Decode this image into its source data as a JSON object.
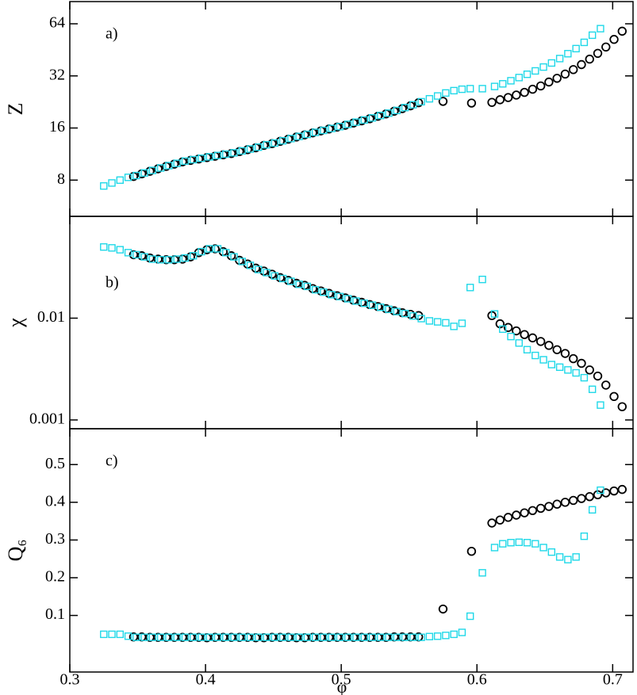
{
  "chart_data": [
    {
      "type": "scatter",
      "annotation": "a)",
      "ylabel": "Z",
      "ylog": true,
      "xlim": [
        0.3,
        0.715
      ],
      "xticks": [
        0.3,
        0.4,
        0.5,
        0.6,
        0.7
      ],
      "ylim": [
        4.94,
        86
      ],
      "yticks": [
        8,
        16,
        32,
        64
      ],
      "series": [
        {
          "color": "#000000",
          "marker": "circle",
          "x": [
            0.347,
            0.353,
            0.359,
            0.365,
            0.371,
            0.377,
            0.383,
            0.389,
            0.395,
            0.401,
            0.407,
            0.413,
            0.419,
            0.425,
            0.431,
            0.437,
            0.443,
            0.449,
            0.455,
            0.461,
            0.467,
            0.473,
            0.479,
            0.485,
            0.491,
            0.497,
            0.503,
            0.509,
            0.515,
            0.521,
            0.527,
            0.533,
            0.539,
            0.545,
            0.551,
            0.557,
            0.575,
            0.596,
            0.611,
            0.617,
            0.623,
            0.629,
            0.635,
            0.641,
            0.647,
            0.653,
            0.659,
            0.665,
            0.671,
            0.677,
            0.683,
            0.689,
            0.695,
            0.701,
            0.707
          ],
          "values": [
            8.4,
            8.7,
            9.0,
            9.3,
            9.6,
            9.9,
            10.2,
            10.4,
            10.6,
            10.8,
            11.0,
            11.2,
            11.4,
            11.7,
            12.0,
            12.3,
            12.7,
            13.0,
            13.4,
            13.8,
            14.2,
            14.6,
            15.0,
            15.4,
            15.8,
            16.2,
            16.6,
            17.1,
            17.6,
            18.1,
            18.7,
            19.3,
            20.0,
            20.7,
            21.5,
            22.4,
            22.8,
            22.3,
            22.5,
            23.3,
            24.0,
            24.8,
            25.7,
            26.8,
            28.0,
            29.5,
            31.0,
            32.8,
            34.8,
            37.2,
            40.0,
            43.2,
            47.0,
            52.0,
            58.0
          ]
        },
        {
          "color": "#1fd8e8",
          "marker": "square",
          "x": [
            0.325,
            0.331,
            0.337,
            0.343,
            0.349,
            0.355,
            0.361,
            0.367,
            0.373,
            0.379,
            0.385,
            0.391,
            0.397,
            0.403,
            0.409,
            0.415,
            0.421,
            0.427,
            0.433,
            0.439,
            0.445,
            0.451,
            0.457,
            0.463,
            0.469,
            0.475,
            0.481,
            0.487,
            0.493,
            0.499,
            0.505,
            0.511,
            0.517,
            0.523,
            0.529,
            0.535,
            0.541,
            0.547,
            0.553,
            0.559,
            0.565,
            0.571,
            0.577,
            0.583,
            0.589,
            0.595,
            0.604,
            0.613,
            0.619,
            0.625,
            0.631,
            0.637,
            0.643,
            0.649,
            0.655,
            0.661,
            0.667,
            0.673,
            0.679,
            0.685,
            0.691
          ],
          "values": [
            7.4,
            7.7,
            8.0,
            8.3,
            8.5,
            8.8,
            9.1,
            9.4,
            9.7,
            10.0,
            10.3,
            10.5,
            10.7,
            10.9,
            11.1,
            11.3,
            11.5,
            11.8,
            12.1,
            12.4,
            12.8,
            13.1,
            13.5,
            13.9,
            14.3,
            14.7,
            15.1,
            15.5,
            15.9,
            16.3,
            16.8,
            17.3,
            17.8,
            18.3,
            18.9,
            19.5,
            20.2,
            21.0,
            21.8,
            22.7,
            23.6,
            24.5,
            25.5,
            26.3,
            26.8,
            27.0,
            27.0,
            27.8,
            28.8,
            30.0,
            31.3,
            32.7,
            34.2,
            36.0,
            38.0,
            40.3,
            43.0,
            46.0,
            50.0,
            55.0,
            60.0
          ]
        }
      ]
    },
    {
      "type": "scatter",
      "annotation": "b)",
      "ylabel": "χ",
      "ylog": true,
      "xlim": [
        0.3,
        0.715
      ],
      "xticks": [
        0.3,
        0.4,
        0.5,
        0.6,
        0.7
      ],
      "ylim": [
        0.00082,
        0.1
      ],
      "yticks": [
        0.001,
        0.01
      ],
      "series": [
        {
          "color": "#000000",
          "marker": "circle",
          "x": [
            0.347,
            0.353,
            0.359,
            0.365,
            0.371,
            0.377,
            0.383,
            0.389,
            0.395,
            0.401,
            0.407,
            0.413,
            0.419,
            0.425,
            0.431,
            0.437,
            0.443,
            0.449,
            0.455,
            0.461,
            0.467,
            0.473,
            0.479,
            0.485,
            0.491,
            0.497,
            0.503,
            0.509,
            0.515,
            0.521,
            0.527,
            0.533,
            0.539,
            0.545,
            0.551,
            0.557,
            0.575,
            0.596,
            0.611,
            0.617,
            0.623,
            0.629,
            0.635,
            0.641,
            0.647,
            0.653,
            0.659,
            0.665,
            0.671,
            0.677,
            0.683,
            0.689,
            0.695,
            0.701,
            0.707
          ],
          "values": [
            0.042,
            0.041,
            0.039,
            0.038,
            0.0375,
            0.0375,
            0.038,
            0.04,
            0.044,
            0.047,
            0.048,
            0.045,
            0.041,
            0.037,
            0.034,
            0.031,
            0.029,
            0.027,
            0.025,
            0.0235,
            0.022,
            0.021,
            0.0195,
            0.0185,
            0.0175,
            0.0166,
            0.0158,
            0.015,
            0.0143,
            0.0136,
            0.013,
            0.0124,
            0.0118,
            0.0113,
            0.0109,
            0.0106,
            null,
            null,
            0.0106,
            0.0088,
            0.0081,
            0.0075,
            0.0069,
            0.0064,
            0.0059,
            0.0054,
            0.0049,
            0.0045,
            0.004,
            0.0036,
            0.0031,
            0.0027,
            0.0022,
            0.0017,
            0.00135
          ]
        },
        {
          "color": "#1fd8e8",
          "marker": "square",
          "x": [
            0.325,
            0.331,
            0.337,
            0.343,
            0.349,
            0.355,
            0.361,
            0.367,
            0.373,
            0.379,
            0.385,
            0.391,
            0.397,
            0.403,
            0.409,
            0.415,
            0.421,
            0.427,
            0.433,
            0.439,
            0.445,
            0.451,
            0.457,
            0.463,
            0.469,
            0.475,
            0.481,
            0.487,
            0.493,
            0.499,
            0.505,
            0.511,
            0.517,
            0.523,
            0.529,
            0.535,
            0.541,
            0.547,
            0.553,
            0.559,
            0.565,
            0.571,
            0.577,
            0.583,
            0.589,
            0.595,
            0.604,
            0.613,
            0.619,
            0.625,
            0.631,
            0.637,
            0.643,
            0.649,
            0.655,
            0.661,
            0.667,
            0.673,
            0.679,
            0.685,
            0.691
          ],
          "values": [
            0.05,
            0.049,
            0.047,
            0.044,
            0.042,
            0.04,
            0.038,
            0.0375,
            0.0375,
            0.038,
            0.039,
            0.041,
            0.045,
            0.048,
            0.048,
            0.044,
            0.04,
            0.036,
            0.033,
            0.03,
            0.028,
            0.026,
            0.0245,
            0.023,
            0.0215,
            0.0205,
            0.019,
            0.018,
            0.017,
            0.0163,
            0.0155,
            0.0147,
            0.014,
            0.0134,
            0.0128,
            0.0122,
            0.0116,
            0.0111,
            0.0105,
            0.0099,
            0.0094,
            0.0092,
            0.009,
            0.0083,
            0.0089,
            0.02,
            0.024,
            0.011,
            0.0078,
            0.0066,
            0.0057,
            0.0049,
            0.0043,
            0.0039,
            0.0035,
            0.0033,
            0.0031,
            0.0029,
            0.0026,
            0.002,
            0.0014
          ]
        }
      ]
    },
    {
      "type": "scatter",
      "annotation": "c)",
      "ylabel": "Q₆",
      "xlabel": "φ",
      "ylog": false,
      "xlim": [
        0.3,
        0.715
      ],
      "xticks": [
        0.3,
        0.4,
        0.5,
        0.6,
        0.7
      ],
      "ylim": [
        -0.05,
        0.595
      ],
      "yticks": [
        0.1,
        0.2,
        0.3,
        0.4,
        0.5
      ],
      "series": [
        {
          "color": "#000000",
          "marker": "circle",
          "x": [
            0.347,
            0.353,
            0.359,
            0.365,
            0.371,
            0.377,
            0.383,
            0.389,
            0.395,
            0.401,
            0.407,
            0.413,
            0.419,
            0.425,
            0.431,
            0.437,
            0.443,
            0.449,
            0.455,
            0.461,
            0.467,
            0.473,
            0.479,
            0.485,
            0.491,
            0.497,
            0.503,
            0.509,
            0.515,
            0.521,
            0.527,
            0.533,
            0.539,
            0.545,
            0.551,
            0.557,
            0.575,
            0.596,
            0.611,
            0.617,
            0.623,
            0.629,
            0.635,
            0.641,
            0.647,
            0.653,
            0.659,
            0.665,
            0.671,
            0.677,
            0.683,
            0.689,
            0.695,
            0.701,
            0.707
          ],
          "values": [
            0.043,
            0.043,
            0.042,
            0.042,
            0.042,
            0.042,
            0.042,
            0.042,
            0.042,
            0.041,
            0.042,
            0.042,
            0.042,
            0.042,
            0.042,
            0.041,
            0.041,
            0.042,
            0.042,
            0.042,
            0.041,
            0.041,
            0.042,
            0.042,
            0.042,
            0.042,
            0.042,
            0.042,
            0.042,
            0.042,
            0.042,
            0.042,
            0.043,
            0.043,
            0.043,
            0.043,
            0.117,
            0.27,
            0.345,
            0.353,
            0.36,
            0.366,
            0.372,
            0.378,
            0.384,
            0.389,
            0.395,
            0.4,
            0.405,
            0.41,
            0.415,
            0.42,
            0.425,
            0.43,
            0.434
          ]
        },
        {
          "color": "#1fd8e8",
          "marker": "square",
          "x": [
            0.325,
            0.331,
            0.337,
            0.343,
            0.349,
            0.355,
            0.361,
            0.367,
            0.373,
            0.379,
            0.385,
            0.391,
            0.397,
            0.403,
            0.409,
            0.415,
            0.421,
            0.427,
            0.433,
            0.439,
            0.445,
            0.451,
            0.457,
            0.463,
            0.469,
            0.475,
            0.481,
            0.487,
            0.493,
            0.499,
            0.505,
            0.511,
            0.517,
            0.523,
            0.529,
            0.535,
            0.541,
            0.547,
            0.553,
            0.559,
            0.565,
            0.571,
            0.577,
            0.583,
            0.589,
            0.595,
            0.604,
            0.613,
            0.619,
            0.625,
            0.631,
            0.637,
            0.643,
            0.649,
            0.655,
            0.661,
            0.667,
            0.673,
            0.679,
            0.685,
            0.691
          ],
          "values": [
            0.05,
            0.05,
            0.05,
            0.045,
            0.042,
            0.042,
            0.042,
            0.042,
            0.042,
            0.042,
            0.042,
            0.042,
            0.042,
            0.042,
            0.042,
            0.042,
            0.042,
            0.042,
            0.042,
            0.042,
            0.042,
            0.042,
            0.042,
            0.042,
            0.042,
            0.042,
            0.042,
            0.042,
            0.042,
            0.042,
            0.042,
            0.042,
            0.042,
            0.042,
            0.042,
            0.042,
            0.042,
            0.042,
            0.042,
            0.042,
            0.044,
            0.045,
            0.047,
            0.05,
            0.055,
            0.098,
            0.213,
            0.28,
            0.29,
            0.293,
            0.294,
            0.293,
            0.29,
            0.28,
            0.268,
            0.255,
            0.248,
            0.255,
            0.31,
            0.38,
            0.432
          ]
        }
      ]
    }
  ]
}
